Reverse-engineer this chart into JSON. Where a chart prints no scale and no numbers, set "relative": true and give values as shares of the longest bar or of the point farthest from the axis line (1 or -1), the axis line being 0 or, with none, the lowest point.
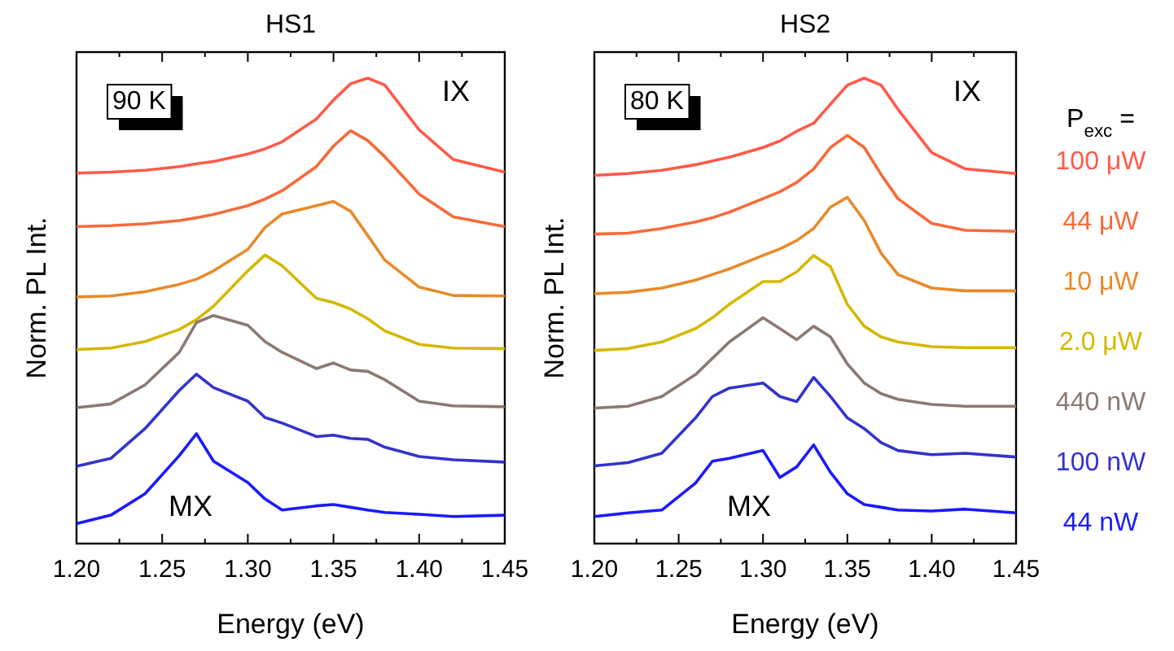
{
  "chart_data": [
    {
      "type": "line",
      "title": "HS1",
      "xlabel": "Energy (eV)",
      "ylabel": "Norm. PL Int.",
      "relative": true,
      "tick_labels": "x",
      "legend": false,
      "xlim": [
        1.2,
        1.45
      ],
      "xticks": [
        {
          "value": 1.2,
          "label": "1.20"
        },
        {
          "value": 1.225,
          "label": null
        },
        {
          "value": 1.25,
          "label": "1.25"
        },
        {
          "value": 1.275,
          "label": null
        },
        {
          "value": 1.3,
          "label": "1.30"
        },
        {
          "value": 1.325,
          "label": null
        },
        {
          "value": 1.35,
          "label": "1.35"
        },
        {
          "value": 1.375,
          "label": null
        },
        {
          "value": 1.4,
          "label": "1.40"
        },
        {
          "value": 1.425,
          "label": null
        },
        {
          "value": 1.45,
          "label": "1.45"
        }
      ],
      "x": [
        1.2,
        1.22,
        1.24,
        1.26,
        1.27,
        1.28,
        1.3,
        1.31,
        1.32,
        1.34,
        1.35,
        1.36,
        1.37,
        1.38,
        1.4,
        1.42,
        1.45
      ],
      "annotations": [
        "90 K",
        "IX",
        "MX"
      ],
      "series": [
        {
          "color": "#ff5a4a",
          "values": [
            0.796,
            0.798,
            0.802,
            0.81,
            0.816,
            0.821,
            0.837,
            0.848,
            0.863,
            0.912,
            0.953,
            0.988,
            1.0,
            0.985,
            0.889,
            0.825,
            0.798
          ]
        },
        {
          "color": "#f76a3a",
          "values": [
            0.681,
            0.683,
            0.687,
            0.694,
            0.7,
            0.707,
            0.726,
            0.74,
            0.758,
            0.81,
            0.854,
            0.887,
            0.866,
            0.831,
            0.751,
            0.702,
            0.681
          ]
        },
        {
          "color": "#e88a2a",
          "values": [
            0.53,
            0.532,
            0.541,
            0.557,
            0.568,
            0.586,
            0.632,
            0.679,
            0.708,
            0.726,
            0.735,
            0.714,
            0.662,
            0.609,
            0.551,
            0.533,
            0.532
          ]
        },
        {
          "color": "#d4b800",
          "values": [
            0.417,
            0.42,
            0.434,
            0.46,
            0.481,
            0.51,
            0.586,
            0.62,
            0.597,
            0.527,
            0.518,
            0.504,
            0.483,
            0.457,
            0.428,
            0.42,
            0.419
          ]
        },
        {
          "color": "#8a7a72",
          "values": [
            0.292,
            0.3,
            0.341,
            0.411,
            0.475,
            0.49,
            0.469,
            0.434,
            0.411,
            0.376,
            0.388,
            0.373,
            0.37,
            0.352,
            0.306,
            0.296,
            0.294
          ]
        },
        {
          "color": "#3333cc",
          "values": [
            0.166,
            0.183,
            0.247,
            0.329,
            0.364,
            0.335,
            0.306,
            0.271,
            0.259,
            0.23,
            0.233,
            0.226,
            0.224,
            0.207,
            0.187,
            0.18,
            0.175
          ]
        },
        {
          "color": "#1a1aff",
          "values": [
            0.043,
            0.061,
            0.107,
            0.189,
            0.236,
            0.177,
            0.131,
            0.096,
            0.072,
            0.081,
            0.084,
            0.078,
            0.072,
            0.067,
            0.063,
            0.058,
            0.061
          ]
        }
      ]
    },
    {
      "type": "line",
      "title": "HS2",
      "xlabel": "Energy (eV)",
      "ylabel": "Norm. PL Int.",
      "relative": true,
      "tick_labels": "x",
      "legend": "right",
      "legend_title": "P$_{exc}$ =",
      "xlim": [
        1.2,
        1.45
      ],
      "xticks": [
        {
          "value": 1.2,
          "label": "1.20"
        },
        {
          "value": 1.225,
          "label": null
        },
        {
          "value": 1.25,
          "label": "1.25"
        },
        {
          "value": 1.275,
          "label": null
        },
        {
          "value": 1.3,
          "label": "1.30"
        },
        {
          "value": 1.325,
          "label": null
        },
        {
          "value": 1.35,
          "label": "1.35"
        },
        {
          "value": 1.375,
          "label": null
        },
        {
          "value": 1.4,
          "label": "1.40"
        },
        {
          "value": 1.425,
          "label": null
        },
        {
          "value": 1.45,
          "label": "1.45"
        }
      ],
      "x": [
        1.2,
        1.22,
        1.24,
        1.26,
        1.27,
        1.28,
        1.3,
        1.31,
        1.32,
        1.33,
        1.34,
        1.35,
        1.36,
        1.37,
        1.38,
        1.4,
        1.42,
        1.45
      ],
      "annotations": [
        "80 K",
        "IX",
        "MX"
      ],
      "series": [
        {
          "name": "100 μW",
          "color": "#ff5a4a",
          "values": [
            0.791,
            0.795,
            0.802,
            0.814,
            0.822,
            0.83,
            0.851,
            0.865,
            0.886,
            0.903,
            0.944,
            0.985,
            1.0,
            0.985,
            0.933,
            0.84,
            0.805,
            0.795
          ]
        },
        {
          "name": "44 μW",
          "color": "#f76a3a",
          "values": [
            0.665,
            0.667,
            0.677,
            0.691,
            0.7,
            0.712,
            0.741,
            0.756,
            0.776,
            0.805,
            0.851,
            0.877,
            0.851,
            0.793,
            0.741,
            0.688,
            0.673,
            0.671
          ]
        },
        {
          "name": "10 μW",
          "color": "#e88a2a",
          "values": [
            0.537,
            0.54,
            0.549,
            0.566,
            0.578,
            0.59,
            0.619,
            0.633,
            0.651,
            0.677,
            0.723,
            0.744,
            0.694,
            0.624,
            0.578,
            0.549,
            0.543,
            0.543
          ]
        },
        {
          "name": "2.0 μW",
          "color": "#d4b800",
          "values": [
            0.415,
            0.419,
            0.433,
            0.462,
            0.485,
            0.514,
            0.563,
            0.563,
            0.584,
            0.619,
            0.595,
            0.514,
            0.467,
            0.444,
            0.433,
            0.423,
            0.421,
            0.421
          ]
        },
        {
          "name": "440 nW",
          "color": "#8a7a72",
          "values": [
            0.291,
            0.295,
            0.316,
            0.363,
            0.398,
            0.433,
            0.485,
            0.462,
            0.438,
            0.467,
            0.444,
            0.386,
            0.345,
            0.322,
            0.31,
            0.299,
            0.295,
            0.295
          ]
        },
        {
          "name": "100 nW",
          "color": "#3333cc",
          "values": [
            0.167,
            0.174,
            0.194,
            0.27,
            0.316,
            0.334,
            0.345,
            0.316,
            0.305,
            0.357,
            0.316,
            0.27,
            0.247,
            0.217,
            0.2,
            0.191,
            0.194,
            0.186
          ]
        },
        {
          "name": "44 nW",
          "color": "#1a1aff",
          "values": [
            0.058,
            0.066,
            0.072,
            0.13,
            0.177,
            0.183,
            0.2,
            0.142,
            0.165,
            0.212,
            0.153,
            0.107,
            0.084,
            0.078,
            0.072,
            0.07,
            0.074,
            0.066
          ]
        }
      ]
    }
  ]
}
